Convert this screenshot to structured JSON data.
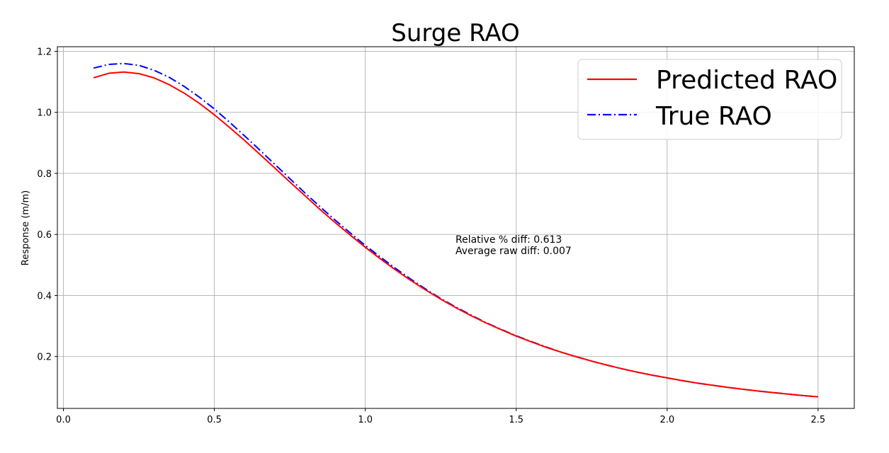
{
  "chart_data": {
    "type": "line",
    "title": "Surge RAO",
    "xlabel": "",
    "ylabel": "Response (m/m)",
    "xlim": [
      -0.02,
      2.62
    ],
    "ylim": [
      0.03,
      1.215
    ],
    "x_ticks": [
      0.0,
      0.5,
      1.0,
      1.5,
      2.0,
      2.5
    ],
    "x_tick_labels": [
      "0.0",
      "0.5",
      "1.0",
      "1.5",
      "2.0",
      "2.5"
    ],
    "y_ticks": [
      0.2,
      0.4,
      0.6,
      0.8,
      1.0,
      1.2
    ],
    "y_tick_labels": [
      "0.2",
      "0.4",
      "0.6",
      "0.8",
      "1.0",
      "1.2"
    ],
    "grid": true,
    "legend_position": "top-right",
    "annotations": [
      "Relative % diff: 0.613",
      "Average raw diff: 0.007"
    ],
    "x": [
      0.1,
      0.15,
      0.2,
      0.25,
      0.3,
      0.35,
      0.4,
      0.45,
      0.5,
      0.55,
      0.6,
      0.65,
      0.7,
      0.75,
      0.8,
      0.85,
      0.9,
      0.95,
      1.0,
      1.05,
      1.1,
      1.15,
      1.2,
      1.25,
      1.3,
      1.35,
      1.4,
      1.45,
      1.5,
      1.55,
      1.6,
      1.65,
      1.7,
      1.75,
      1.8,
      1.85,
      1.9,
      1.95,
      2.0,
      2.05,
      2.1,
      2.15,
      2.2,
      2.25,
      2.3,
      2.35,
      2.4,
      2.45,
      2.5
    ],
    "series": [
      {
        "name": "Predicted RAO",
        "color": "#ff0000",
        "style": "solid",
        "values": [
          1.113,
          1.128,
          1.132,
          1.127,
          1.113,
          1.091,
          1.063,
          1.03,
          0.992,
          0.951,
          0.908,
          0.863,
          0.818,
          0.772,
          0.727,
          0.682,
          0.639,
          0.598,
          0.558,
          0.52,
          0.484,
          0.45,
          0.418,
          0.388,
          0.36,
          0.334,
          0.31,
          0.288,
          0.267,
          0.248,
          0.23,
          0.214,
          0.199,
          0.185,
          0.172,
          0.16,
          0.149,
          0.139,
          0.13,
          0.121,
          0.113,
          0.106,
          0.099,
          0.093,
          0.087,
          0.082,
          0.077,
          0.072,
          0.068
        ]
      },
      {
        "name": "True RAO",
        "color": "#0000ff",
        "style": "dashdot",
        "values": [
          1.145,
          1.157,
          1.16,
          1.154,
          1.138,
          1.115,
          1.085,
          1.05,
          1.011,
          0.968,
          0.923,
          0.877,
          0.83,
          0.783,
          0.736,
          0.691,
          0.647,
          0.605,
          0.564,
          0.526,
          0.489,
          0.454,
          0.421,
          0.39,
          0.362,
          0.336,
          0.311,
          0.289,
          0.268,
          0.249,
          0.231,
          0.214,
          0.199,
          0.185,
          0.172,
          0.16,
          0.149,
          0.139,
          0.13,
          0.121,
          0.113,
          0.106,
          0.099,
          0.093,
          0.087,
          0.082,
          0.077,
          0.072,
          0.068
        ]
      }
    ]
  }
}
